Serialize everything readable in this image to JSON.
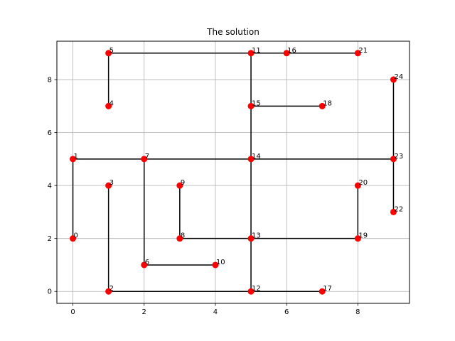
{
  "chart_data": {
    "type": "scatter",
    "title": "The solution",
    "xlabel": "",
    "ylabel": "",
    "xlim": [
      -0.45,
      9.45
    ],
    "ylim": [
      -0.45,
      9.45
    ],
    "x_ticks": [
      0,
      2,
      4,
      6,
      8
    ],
    "y_ticks": [
      0,
      2,
      4,
      6,
      8
    ],
    "grid": true,
    "point_color": "#ff0000",
    "edge_color": "#000000",
    "grid_color": "#b0b0b0",
    "points": [
      {
        "label": "0",
        "x": 0,
        "y": 2
      },
      {
        "label": "1",
        "x": 0,
        "y": 5
      },
      {
        "label": "2",
        "x": 1,
        "y": 0
      },
      {
        "label": "3",
        "x": 1,
        "y": 4
      },
      {
        "label": "4",
        "x": 1,
        "y": 7
      },
      {
        "label": "5",
        "x": 1,
        "y": 9
      },
      {
        "label": "6",
        "x": 2,
        "y": 1
      },
      {
        "label": "7",
        "x": 2,
        "y": 5
      },
      {
        "label": "8",
        "x": 3,
        "y": 2
      },
      {
        "label": "9",
        "x": 3,
        "y": 4
      },
      {
        "label": "10",
        "x": 4,
        "y": 1
      },
      {
        "label": "11",
        "x": 5,
        "y": 9
      },
      {
        "label": "12",
        "x": 5,
        "y": 0
      },
      {
        "label": "13",
        "x": 5,
        "y": 2
      },
      {
        "label": "14",
        "x": 5,
        "y": 5
      },
      {
        "label": "15",
        "x": 5,
        "y": 7
      },
      {
        "label": "16",
        "x": 6,
        "y": 9
      },
      {
        "label": "17",
        "x": 7,
        "y": 0
      },
      {
        "label": "18",
        "x": 7,
        "y": 7
      },
      {
        "label": "19",
        "x": 8,
        "y": 2
      },
      {
        "label": "20",
        "x": 8,
        "y": 4
      },
      {
        "label": "21",
        "x": 8,
        "y": 9
      },
      {
        "label": "22",
        "x": 9,
        "y": 3
      },
      {
        "label": "23",
        "x": 9,
        "y": 5
      },
      {
        "label": "24",
        "x": 9,
        "y": 8
      }
    ],
    "edges": [
      [
        "0",
        "1"
      ],
      [
        "1",
        "7"
      ],
      [
        "7",
        "14"
      ],
      [
        "14",
        "23"
      ],
      [
        "23",
        "24"
      ],
      [
        "23",
        "22"
      ],
      [
        "7",
        "6"
      ],
      [
        "6",
        "10"
      ],
      [
        "3",
        "2"
      ],
      [
        "2",
        "12"
      ],
      [
        "12",
        "17"
      ],
      [
        "12",
        "13"
      ],
      [
        "13",
        "14"
      ],
      [
        "14",
        "15"
      ],
      [
        "15",
        "11"
      ],
      [
        "15",
        "18"
      ],
      [
        "11",
        "16"
      ],
      [
        "16",
        "21"
      ],
      [
        "11",
        "5"
      ],
      [
        "5",
        "4"
      ],
      [
        "9",
        "8"
      ],
      [
        "8",
        "13"
      ],
      [
        "13",
        "19"
      ],
      [
        "19",
        "20"
      ]
    ]
  }
}
